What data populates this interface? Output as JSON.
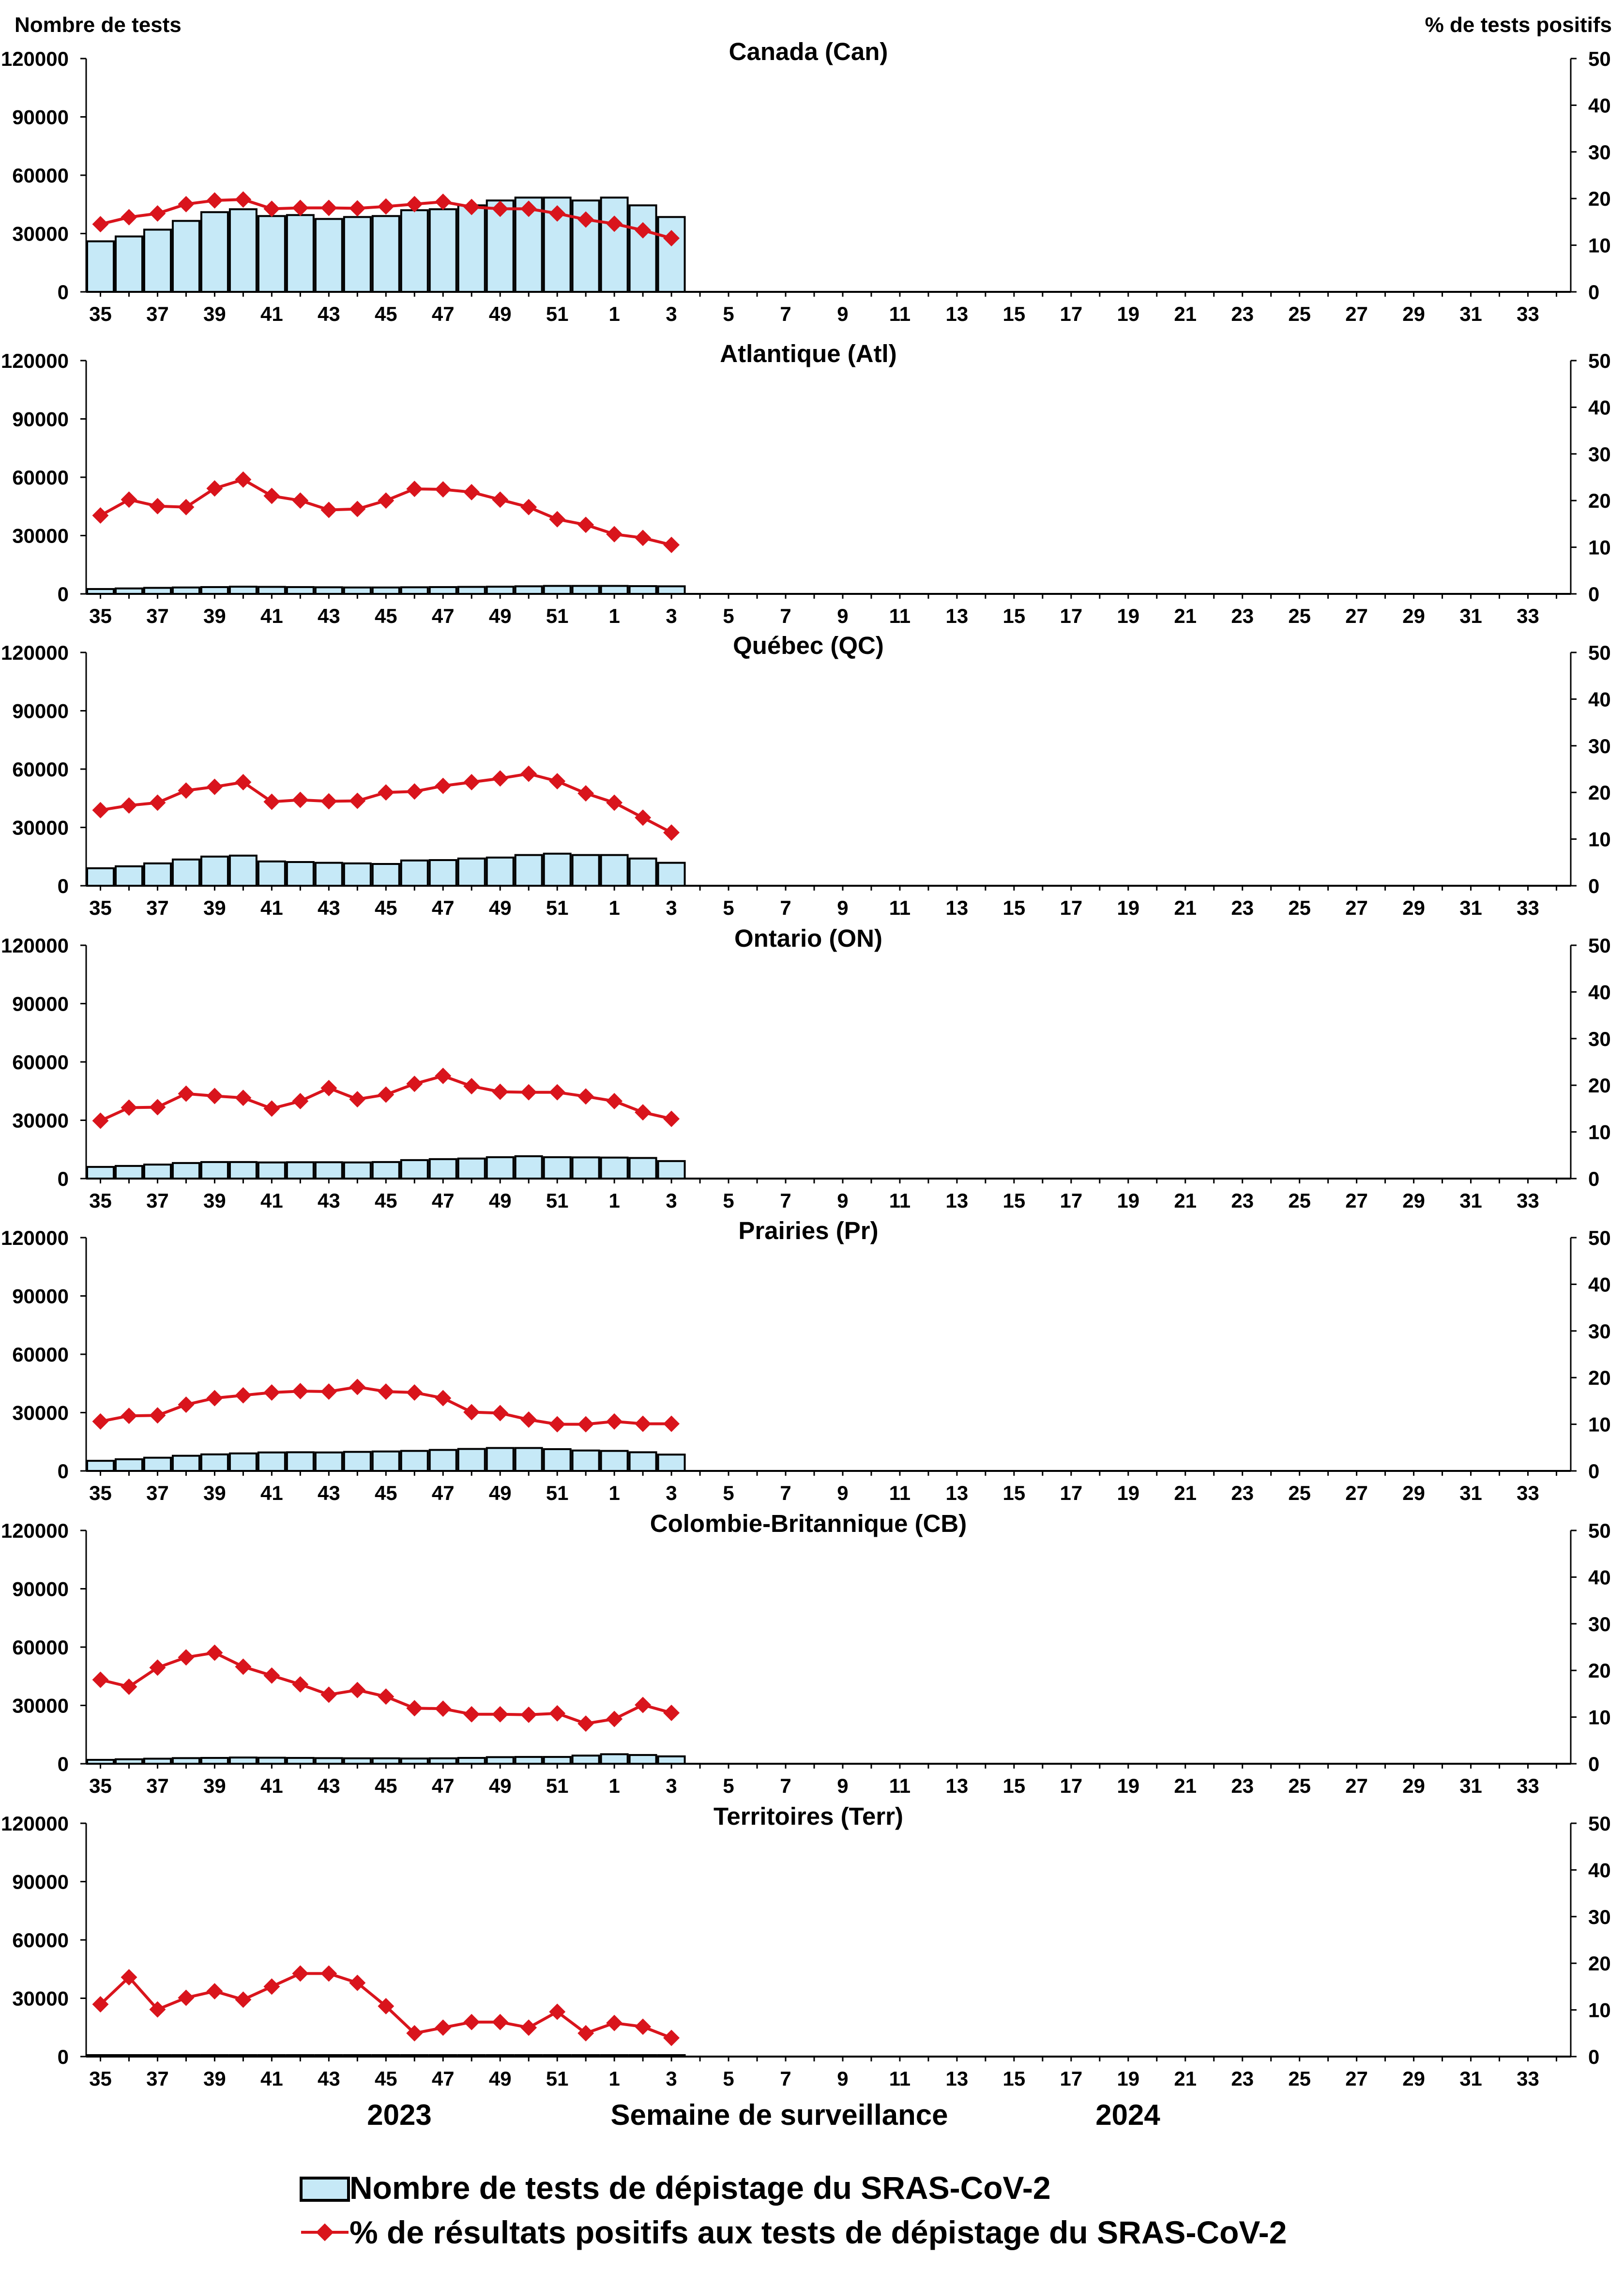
{
  "axis_labels": {
    "left": "Nombre de tests",
    "right": "% de tests positifs"
  },
  "footer": {
    "year_left": "2023",
    "axis_title": "Semaine de surveillance",
    "year_right": "2024"
  },
  "legend": {
    "bars_label": "Nombre de tests de dépistage du SRAS-CoV-2",
    "line_label": "% de résultats positifs aux tests de dépistage du SRAS-CoV-2"
  },
  "colors": {
    "bar_fill": "#c6e9f7",
    "bar_stroke": "#000000",
    "line": "#d9141c",
    "axis": "#000000"
  },
  "chart_data": {
    "type": "bar+line",
    "weeks": [
      "35",
      "36",
      "37",
      "38",
      "39",
      "40",
      "41",
      "42",
      "43",
      "44",
      "45",
      "46",
      "47",
      "48",
      "49",
      "50",
      "51",
      "52",
      "1",
      "2",
      "3",
      "4",
      "5",
      "6",
      "7",
      "8",
      "9",
      "10",
      "11",
      "12",
      "13",
      "14",
      "15",
      "16",
      "17",
      "18",
      "19",
      "20",
      "21",
      "22",
      "23",
      "24",
      "25",
      "26",
      "27",
      "28",
      "29",
      "30",
      "31",
      "32",
      "33",
      "34"
    ],
    "x_tick_labels": [
      "35",
      "37",
      "39",
      "41",
      "43",
      "45",
      "47",
      "49",
      "51",
      "1",
      "3",
      "5",
      "7",
      "9",
      "11",
      "13",
      "15",
      "17",
      "19",
      "21",
      "23",
      "25",
      "27",
      "29",
      "31",
      "33"
    ],
    "left_axis": {
      "label": "Nombre de tests",
      "min": 0,
      "max": 120000,
      "ticks": [
        "0",
        "30000",
        "60000",
        "90000",
        "120000"
      ]
    },
    "right_axis": {
      "label": "% de tests positifs",
      "min": 0,
      "max": 50,
      "ticks": [
        "0",
        "10",
        "20",
        "30",
        "40",
        "50"
      ]
    },
    "panels": [
      {
        "title": "Canada (Can)",
        "tests": [
          26000,
          28500,
          32000,
          36500,
          41000,
          42500,
          39000,
          39500,
          37500,
          38500,
          39000,
          42000,
          42500,
          44500,
          47000,
          48500,
          48500,
          47000,
          48500,
          44500,
          38500
        ],
        "percent_positive": [
          14.5,
          16,
          16.8,
          18.8,
          19.6,
          19.8,
          17.8,
          18,
          18,
          17.9,
          18.3,
          18.8,
          19.3,
          18.2,
          17.8,
          17.8,
          16.8,
          15.5,
          14.6,
          13.2,
          11.5
        ]
      },
      {
        "title": "Atlantique (Atl)",
        "tests": [
          2500,
          2800,
          3100,
          3300,
          3500,
          3700,
          3600,
          3500,
          3400,
          3300,
          3300,
          3400,
          3500,
          3600,
          3700,
          3900,
          4100,
          4100,
          4100,
          4000,
          3900
        ],
        "percent_positive": [
          16.8,
          20.2,
          18.8,
          18.6,
          22.6,
          24.5,
          21,
          20,
          18,
          18.2,
          20,
          22.5,
          22.4,
          21.8,
          20.2,
          18.6,
          16,
          14.8,
          12.8,
          12,
          10.5
        ]
      },
      {
        "title": "Québec (QC)",
        "tests": [
          9000,
          10000,
          11500,
          13500,
          15000,
          15500,
          12500,
          12200,
          11800,
          11500,
          11200,
          13000,
          13200,
          14000,
          14500,
          15800,
          16500,
          15800,
          15800,
          14000,
          11800
        ],
        "percent_positive": [
          16.2,
          17.2,
          17.8,
          20.4,
          21.2,
          22.2,
          18,
          18.4,
          18.1,
          18.2,
          20,
          20.2,
          21.4,
          22.2,
          23,
          24,
          22.4,
          19.8,
          17.8,
          14.6,
          11.4
        ]
      },
      {
        "title": "Ontario (ON)",
        "tests": [
          6000,
          6500,
          7200,
          8000,
          8500,
          8500,
          8300,
          8400,
          8400,
          8300,
          8500,
          9500,
          10000,
          10300,
          11000,
          11500,
          11000,
          10900,
          10800,
          10600,
          9000
        ],
        "percent_positive": [
          12.4,
          15.2,
          15.3,
          18.2,
          17.7,
          17.3,
          15,
          16.6,
          19.4,
          17,
          18,
          20.3,
          22,
          19.8,
          18.6,
          18.5,
          18.5,
          17.6,
          16.6,
          14.2,
          12.8
        ]
      },
      {
        "title": "Prairies (Pr)",
        "tests": [
          5200,
          6000,
          6800,
          7800,
          8500,
          9000,
          9500,
          9600,
          9500,
          9800,
          10000,
          10300,
          10800,
          11300,
          11800,
          11800,
          11200,
          10500,
          10300,
          9600,
          8400
        ],
        "percent_positive": [
          10.6,
          11.8,
          11.9,
          14.2,
          15.6,
          16.2,
          16.8,
          17.1,
          17,
          18,
          17,
          16.8,
          15.6,
          12.6,
          12.4,
          11,
          10,
          10,
          10.6,
          10.1,
          10.1
        ]
      },
      {
        "title": "Colombie-Britannique (CB)",
        "tests": [
          2000,
          2300,
          2600,
          2900,
          3000,
          3200,
          3100,
          3000,
          2900,
          2800,
          2800,
          2700,
          2800,
          3000,
          3400,
          3500,
          3500,
          4200,
          4900,
          4500,
          3800
        ],
        "percent_positive": [
          18,
          16.5,
          20.6,
          22.8,
          23.8,
          20.8,
          18.9,
          17,
          14.8,
          15.8,
          14.4,
          11.9,
          11.8,
          10.6,
          10.6,
          10.5,
          10.8,
          8.6,
          9.6,
          12.6,
          10.9
        ]
      },
      {
        "title": "Territoires (Terr)",
        "tests": [
          150,
          150,
          150,
          150,
          150,
          150,
          150,
          150,
          150,
          150,
          150,
          150,
          150,
          150,
          150,
          150,
          150,
          150,
          150,
          150,
          150
        ],
        "percent_positive": [
          11.2,
          17,
          10.1,
          12.6,
          14,
          12.2,
          15,
          17.8,
          17.8,
          15.8,
          10.8,
          5,
          6.2,
          7.4,
          7.4,
          6.2,
          9.6,
          5,
          7.2,
          6.4,
          4
        ]
      }
    ]
  }
}
